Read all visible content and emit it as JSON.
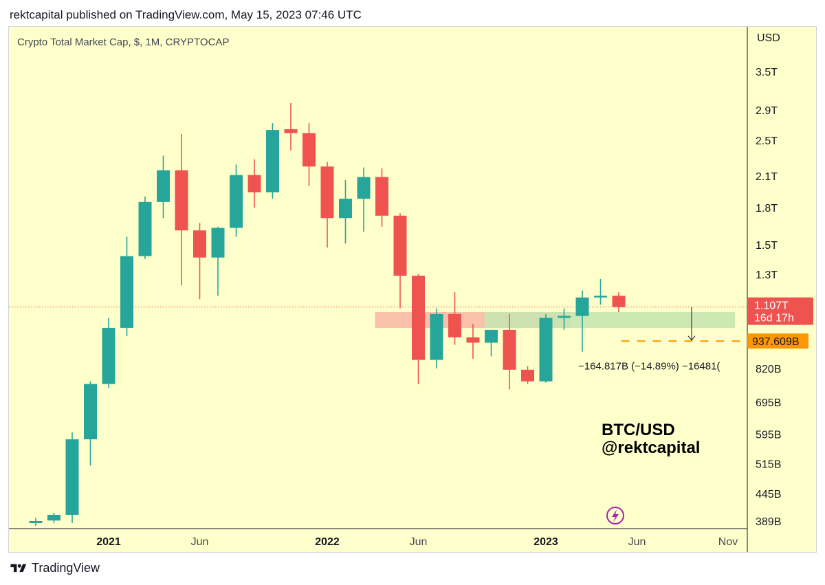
{
  "header": {
    "published_line": "rektcapital published on TradingView.com, May 15, 2023 07:46 UTC"
  },
  "footer": {
    "brand": "TradingView"
  },
  "colors": {
    "background": "#ffffcc",
    "up_candle": "#26a69a",
    "down_candle": "#ef5350",
    "resistance_zone": "#f8b5a3",
    "support_zone": "#c8e6b0",
    "target_line": "#ff9800",
    "current_price_line": "#ef5350",
    "flash_icon": "#9c27b0"
  },
  "chart_data": {
    "type": "candlestick",
    "title": "Crypto Total Market Cap, $, 1M, CRYPTOCAP",
    "y_axis": {
      "unit_label": "USD",
      "scale": "log",
      "range": [
        389,
        4000
      ],
      "ticks": [
        {
          "label": "3.5T",
          "value": 3500
        },
        {
          "label": "2.9T",
          "value": 2900
        },
        {
          "label": "2.5T",
          "value": 2500
        },
        {
          "label": "2.1T",
          "value": 2100
        },
        {
          "label": "1.8T",
          "value": 1800
        },
        {
          "label": "1.5T",
          "value": 1500
        },
        {
          "label": "1.3T",
          "value": 1300
        },
        {
          "label": "820B",
          "value": 820
        },
        {
          "label": "695B",
          "value": 695
        },
        {
          "label": "595B",
          "value": 595
        },
        {
          "label": "515B",
          "value": 515
        },
        {
          "label": "445B",
          "value": 445
        },
        {
          "label": "389B",
          "value": 389
        }
      ]
    },
    "x_axis": {
      "ticks": [
        {
          "label": "2021",
          "date": "2021-01",
          "bold": true
        },
        {
          "label": "Jun",
          "date": "2021-06",
          "bold": false
        },
        {
          "label": "2022",
          "date": "2022-01",
          "bold": true
        },
        {
          "label": "Jun",
          "date": "2022-06",
          "bold": false
        },
        {
          "label": "2023",
          "date": "2023-01",
          "bold": true
        },
        {
          "label": "Jun",
          "date": "2023-06",
          "bold": false
        },
        {
          "label": "Nov",
          "date": "2023-11",
          "bold": false
        }
      ]
    },
    "value_unit": "billions USD",
    "candles": [
      {
        "date": "2020-09",
        "open": 385,
        "high": 395,
        "low": 380,
        "close": 389
      },
      {
        "date": "2020-10",
        "open": 390,
        "high": 405,
        "low": 385,
        "close": 401
      },
      {
        "date": "2020-11",
        "open": 401,
        "high": 600,
        "low": 385,
        "close": 580
      },
      {
        "date": "2020-12",
        "open": 580,
        "high": 770,
        "low": 510,
        "close": 760
      },
      {
        "date": "2021-01",
        "open": 760,
        "high": 1050,
        "low": 745,
        "close": 1000
      },
      {
        "date": "2021-02",
        "open": 1000,
        "high": 1560,
        "low": 960,
        "close": 1420
      },
      {
        "date": "2021-03",
        "open": 1420,
        "high": 1900,
        "low": 1400,
        "close": 1850
      },
      {
        "date": "2021-04",
        "open": 1850,
        "high": 2320,
        "low": 1710,
        "close": 2160
      },
      {
        "date": "2021-05",
        "open": 2160,
        "high": 2580,
        "low": 1230,
        "close": 1610
      },
      {
        "date": "2021-06",
        "open": 1610,
        "high": 1670,
        "low": 1150,
        "close": 1410
      },
      {
        "date": "2021-07",
        "open": 1410,
        "high": 1640,
        "low": 1170,
        "close": 1630
      },
      {
        "date": "2021-08",
        "open": 1630,
        "high": 2220,
        "low": 1560,
        "close": 2110
      },
      {
        "date": "2021-09",
        "open": 2110,
        "high": 2280,
        "low": 1800,
        "close": 1940
      },
      {
        "date": "2021-10",
        "open": 1940,
        "high": 2720,
        "low": 1880,
        "close": 2630
      },
      {
        "date": "2021-11",
        "open": 2640,
        "high": 3000,
        "low": 2380,
        "close": 2590
      },
      {
        "date": "2021-12",
        "open": 2590,
        "high": 2720,
        "low": 2000,
        "close": 2200
      },
      {
        "date": "2022-01",
        "open": 2200,
        "high": 2250,
        "low": 1480,
        "close": 1710
      },
      {
        "date": "2022-02",
        "open": 1710,
        "high": 2060,
        "low": 1510,
        "close": 1880
      },
      {
        "date": "2022-03",
        "open": 1880,
        "high": 2190,
        "low": 1600,
        "close": 2090
      },
      {
        "date": "2022-04",
        "open": 2090,
        "high": 2180,
        "low": 1640,
        "close": 1730
      },
      {
        "date": "2022-05",
        "open": 1730,
        "high": 1750,
        "low": 1100,
        "close": 1290
      },
      {
        "date": "2022-06",
        "open": 1290,
        "high": 1300,
        "low": 760,
        "close": 855
      },
      {
        "date": "2022-07",
        "open": 855,
        "high": 1100,
        "low": 820,
        "close": 1070
      },
      {
        "date": "2022-08",
        "open": 1070,
        "high": 1190,
        "low": 920,
        "close": 955
      },
      {
        "date": "2022-09",
        "open": 955,
        "high": 1020,
        "low": 860,
        "close": 930
      },
      {
        "date": "2022-10",
        "open": 930,
        "high": 990,
        "low": 870,
        "close": 990
      },
      {
        "date": "2022-11",
        "open": 990,
        "high": 1070,
        "low": 740,
        "close": 815
      },
      {
        "date": "2022-12",
        "open": 815,
        "high": 830,
        "low": 760,
        "close": 770
      },
      {
        "date": "2023-01",
        "open": 770,
        "high": 1070,
        "low": 765,
        "close": 1050
      },
      {
        "date": "2023-02",
        "open": 1050,
        "high": 1100,
        "low": 990,
        "close": 1060
      },
      {
        "date": "2023-03",
        "open": 1060,
        "high": 1200,
        "low": 890,
        "close": 1160
      },
      {
        "date": "2023-04",
        "open": 1160,
        "high": 1270,
        "low": 1120,
        "close": 1170
      },
      {
        "date": "2023-05",
        "open": 1170,
        "high": 1190,
        "low": 1080,
        "close": 1107
      }
    ],
    "zones": [
      {
        "name": "resistance-zone",
        "from_date": "2022-04",
        "to_date": "2023-02",
        "low": 1000,
        "high": 1080
      },
      {
        "name": "support-zone",
        "from_date": "2022-10",
        "to_date": "2023-11",
        "low": 1000,
        "high": 1080
      }
    ],
    "current_price": {
      "value": 1107,
      "label": "1.107T",
      "countdown": "16d 17h"
    },
    "target_line": {
      "value": 937.609,
      "label": "937.609B",
      "from_date": "2023-04",
      "to_date": "2023-12"
    },
    "measure": {
      "date": "2023-09",
      "from_value": 1107,
      "to_value": 942,
      "text": "−164.817B (−14.89%) −16481(",
      "text_date": "2023-03",
      "text_value": 830
    },
    "annotation": {
      "line1": "BTC/USD",
      "line2": "@rektcapital"
    }
  }
}
